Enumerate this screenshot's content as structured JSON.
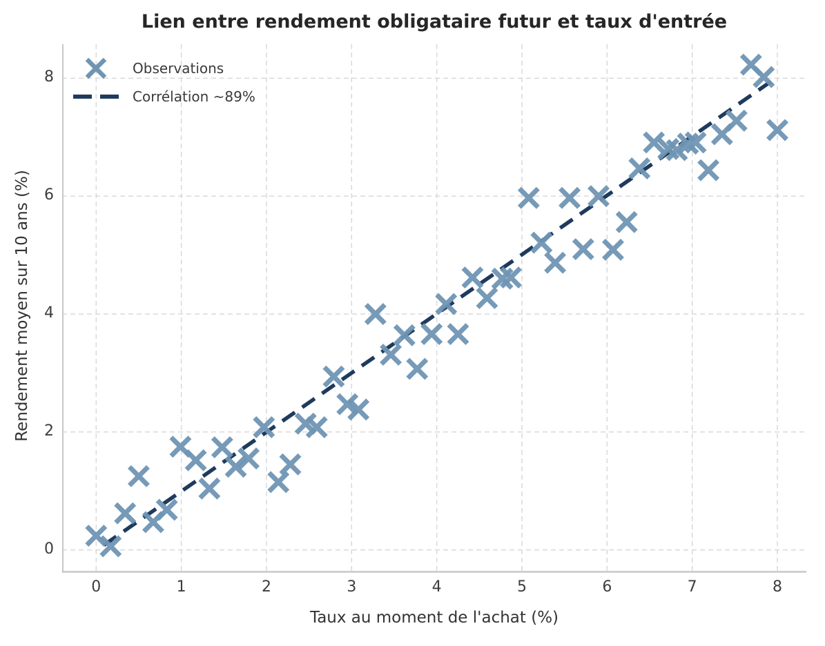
{
  "title": "Lien entre rendement obligataire futur et taux d'entrée",
  "axes": {
    "xlabel": "Taux au moment de l'achat (%)",
    "ylabel": "Rendement moyen sur 10 ans (%)",
    "x_ticks": [
      "0",
      "1",
      "2",
      "3",
      "4",
      "5",
      "6",
      "7",
      "8"
    ],
    "x_tick_values": [
      0,
      1,
      2,
      3,
      4,
      5,
      6,
      7,
      8
    ],
    "y_ticks": [
      "0",
      "2",
      "4",
      "6",
      "8"
    ],
    "y_tick_values": [
      0,
      2,
      4,
      6,
      8
    ]
  },
  "legend": {
    "items": [
      {
        "label": "Observations",
        "icon": "x-marker-icon"
      },
      {
        "label": "Corrélation ~89%",
        "icon": "dashed-line-icon"
      }
    ]
  },
  "colors": {
    "marker": "#6f95b3",
    "trend_line": "#1e3b5d",
    "grid": "#d9d9d9",
    "spine": "#c7c7c7",
    "tick_text": "#3d3d3d",
    "title_text": "#262626",
    "axis_label_text": "#333333"
  },
  "chart_data": {
    "type": "scatter",
    "title": "Lien entre rendement obligataire futur et taux d'entrée",
    "xlabel": "Taux au moment de l'achat (%)",
    "ylabel": "Rendement moyen sur 10 ans (%)",
    "xlim": [
      -0.4,
      8.35
    ],
    "ylim": [
      -0.45,
      8.6
    ],
    "grid": true,
    "grid_style": "dashed",
    "legend_position": "upper left",
    "series": [
      {
        "name": "Observations",
        "type": "scatter",
        "marker": "x",
        "points": [
          [
            0.0,
            0.24
          ],
          [
            0.17,
            0.06
          ],
          [
            0.34,
            0.62
          ],
          [
            0.5,
            1.25
          ],
          [
            0.67,
            0.47
          ],
          [
            0.83,
            0.68
          ],
          [
            0.99,
            1.75
          ],
          [
            1.17,
            1.52
          ],
          [
            1.33,
            1.04
          ],
          [
            1.48,
            1.74
          ],
          [
            1.64,
            1.41
          ],
          [
            1.79,
            1.55
          ],
          [
            1.97,
            2.08
          ],
          [
            2.14,
            1.15
          ],
          [
            2.28,
            1.45
          ],
          [
            2.46,
            2.14
          ],
          [
            2.59,
            2.08
          ],
          [
            2.79,
            2.94
          ],
          [
            2.95,
            2.47
          ],
          [
            3.08,
            2.38
          ],
          [
            3.28,
            4.0
          ],
          [
            3.46,
            3.31
          ],
          [
            3.62,
            3.64
          ],
          [
            3.77,
            3.07
          ],
          [
            3.94,
            3.66
          ],
          [
            4.11,
            4.17
          ],
          [
            4.25,
            3.66
          ],
          [
            4.42,
            4.62
          ],
          [
            4.59,
            4.27
          ],
          [
            4.77,
            4.6
          ],
          [
            4.87,
            4.62
          ],
          [
            5.08,
            5.97
          ],
          [
            5.23,
            5.21
          ],
          [
            5.39,
            4.87
          ],
          [
            5.56,
            5.97
          ],
          [
            5.72,
            5.1
          ],
          [
            5.9,
            6.0
          ],
          [
            6.07,
            5.09
          ],
          [
            6.23,
            5.56
          ],
          [
            6.38,
            6.47
          ],
          [
            6.55,
            6.91
          ],
          [
            6.72,
            6.8
          ],
          [
            6.82,
            6.78
          ],
          [
            6.95,
            6.89
          ],
          [
            7.04,
            6.91
          ],
          [
            7.19,
            6.44
          ],
          [
            7.35,
            7.05
          ],
          [
            7.52,
            7.28
          ],
          [
            7.69,
            8.23
          ],
          [
            7.84,
            8.02
          ],
          [
            8.0,
            7.12
          ]
        ]
      },
      {
        "name": "Corrélation ~89%",
        "type": "line",
        "style": "dashed",
        "points": [
          [
            0.09,
            0.08
          ],
          [
            7.98,
            8.0
          ]
        ]
      }
    ]
  }
}
